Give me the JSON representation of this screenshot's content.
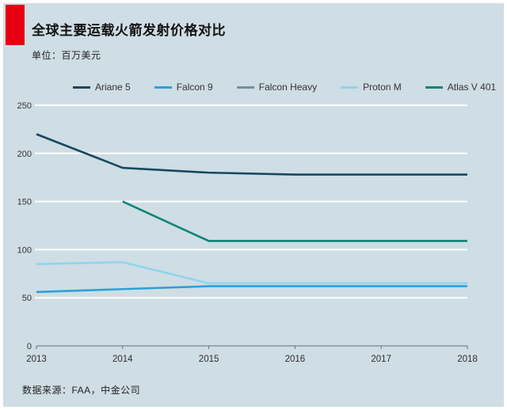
{
  "header": {
    "title": "全球主要运载火箭发射价格对比",
    "unit_label": "单位：百万美元"
  },
  "footer": {
    "source": "数据来源：FAA，中金公司"
  },
  "colors": {
    "accent_red": "#e60012",
    "background": "#cfdde4",
    "grid": "#ffffff",
    "axis": "#60737b",
    "tick_text": "#333333"
  },
  "chart_data": {
    "type": "line",
    "title": "全球主要运载火箭发射价格对比",
    "unit": "百万美元",
    "categories": [
      "2013",
      "2014",
      "2015",
      "2016",
      "2017",
      "2018"
    ],
    "xlabel": "",
    "ylabel": "",
    "ylim": [
      0,
      250
    ],
    "yticks": [
      0,
      50,
      100,
      150,
      200,
      250
    ],
    "grid": "horizontal-white",
    "legend_position": "top",
    "series": [
      {
        "name": "Ariane 5",
        "color": "#15495f",
        "values": [
          220,
          185,
          180,
          178,
          178,
          178
        ]
      },
      {
        "name": "Falcon 9",
        "color": "#2ba1d8",
        "values": [
          56,
          59,
          62,
          62,
          62,
          62
        ]
      },
      {
        "name": "Falcon Heavy",
        "color": "#6e92a1",
        "values": [
          null,
          null,
          null,
          null,
          null,
          null
        ]
      },
      {
        "name": "Proton M",
        "color": "#90d4ef",
        "values": [
          85,
          87,
          65,
          65,
          65,
          65
        ]
      },
      {
        "name": "Atlas V 401",
        "color": "#0b8577",
        "values": [
          null,
          150,
          109,
          109,
          109,
          109
        ]
      }
    ]
  }
}
